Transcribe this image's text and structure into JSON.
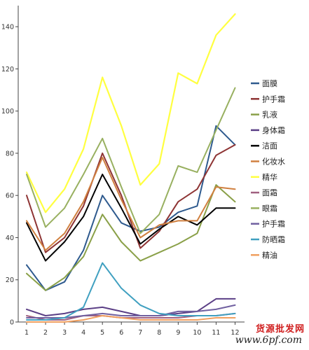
{
  "chart_data": {
    "type": "line",
    "title": "",
    "xlabel": "",
    "ylabel": "",
    "categories": [
      "1",
      "2",
      "3",
      "4",
      "5",
      "6",
      "7",
      "8",
      "9",
      "10",
      "11",
      "12"
    ],
    "y_ticks": [
      "0",
      "20",
      "40",
      "60",
      "80",
      "100",
      "120",
      "140"
    ],
    "ylim": [
      0,
      150
    ],
    "grid": false,
    "legend_position": "right",
    "series": [
      {
        "name": "面膜",
        "color": "#2e5a8e",
        "values": [
          27,
          15,
          19,
          34,
          60,
          47,
          43,
          45,
          52,
          55,
          93,
          84
        ]
      },
      {
        "name": "护手霜",
        "color": "#8e3434",
        "values": [
          60,
          33,
          40,
          55,
          80,
          60,
          35,
          43,
          57,
          63,
          79,
          84
        ]
      },
      {
        "name": "乳液",
        "color": "#8aa048",
        "values": [
          23,
          15,
          21,
          31,
          51,
          38,
          29,
          33,
          37,
          42,
          65,
          57
        ]
      },
      {
        "name": "身体霜",
        "color": "#5b3f86",
        "values": [
          6,
          3,
          4,
          6,
          7,
          5,
          3,
          3,
          4,
          5,
          11,
          11
        ]
      },
      {
        "name": "洁面",
        "color": "#000000",
        "values": [
          47,
          29,
          38,
          50,
          70,
          54,
          37,
          44,
          50,
          46,
          54,
          54
        ]
      },
      {
        "name": "化妆水",
        "color": "#d08040",
        "values": [
          48,
          34,
          42,
          57,
          78,
          58,
          40,
          46,
          48,
          48,
          64,
          63
        ]
      },
      {
        "name": "精华",
        "color": "#ffff40",
        "values": [
          71,
          52,
          63,
          82,
          116,
          93,
          65,
          75,
          118,
          113,
          136,
          146
        ]
      },
      {
        "name": "面霜",
        "color": "#a06080",
        "values": [
          3,
          1,
          1,
          3,
          3,
          2,
          2,
          2,
          2,
          3,
          3,
          4
        ]
      },
      {
        "name": "眼霜",
        "color": "#98b060",
        "values": [
          70,
          45,
          54,
          70,
          87,
          64,
          42,
          51,
          74,
          71,
          91,
          111
        ]
      },
      {
        "name": "护手霜",
        "color": "#7060a0",
        "values": [
          2,
          2,
          2,
          3,
          4,
          3,
          3,
          3,
          5,
          5,
          6,
          8
        ]
      },
      {
        "name": "防晒霜",
        "color": "#40a0c0",
        "values": [
          1,
          1,
          2,
          7,
          28,
          16,
          8,
          4,
          3,
          3,
          3,
          4
        ]
      },
      {
        "name": "精油",
        "color": "#f0a060",
        "values": [
          0,
          0,
          0,
          1,
          3,
          2,
          1,
          1,
          1,
          1,
          2,
          2
        ]
      }
    ]
  },
  "watermark": {
    "site_name": "货源批发网",
    "url": "www.6pf.com"
  }
}
